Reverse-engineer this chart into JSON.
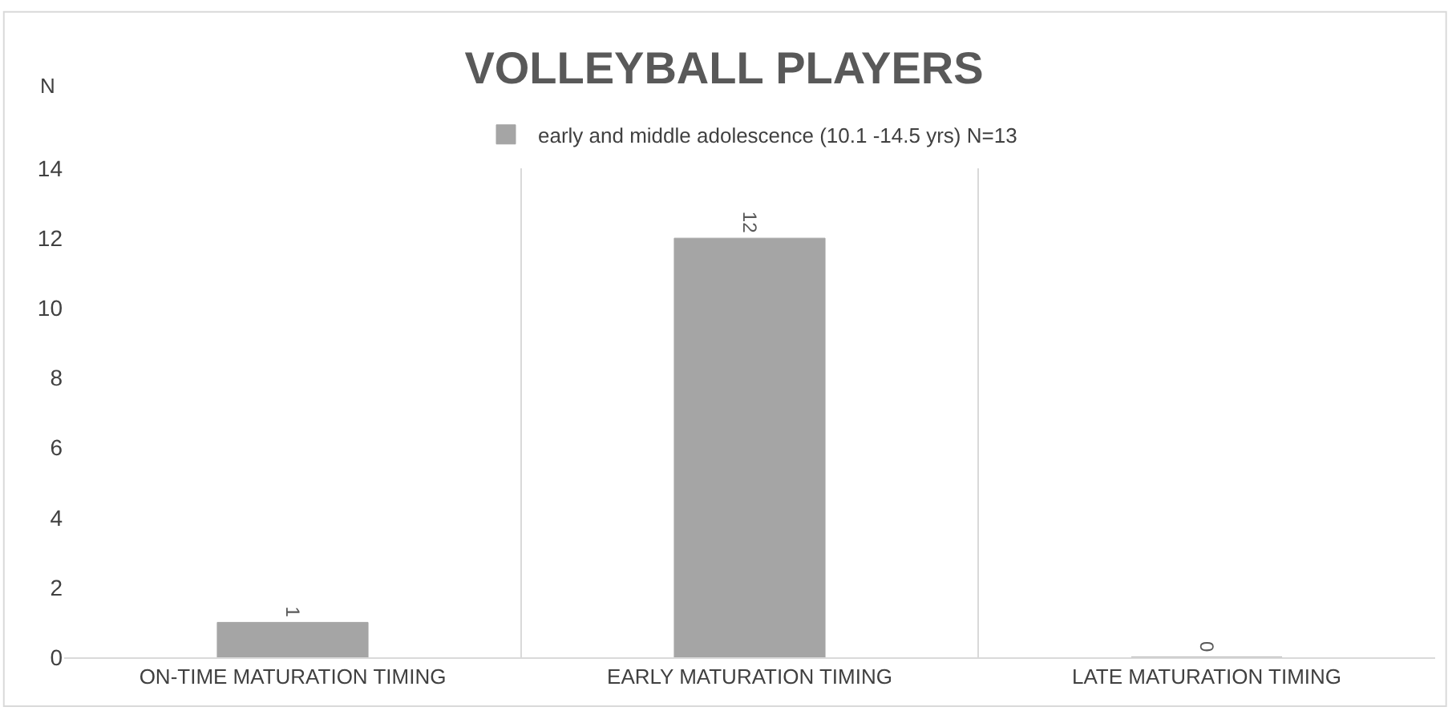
{
  "chart_data": {
    "type": "bar",
    "title": "VOLLEYBALL PLAYERS",
    "ylabel": "N",
    "categories": [
      "ON-TIME MATURATION TIMING",
      "EARLY MATURATION TIMING",
      "LATE MATURATION TIMING"
    ],
    "series": [
      {
        "name": "early and middle adolescence (10.1 -14.5 yrs) N=13",
        "color": "#a5a5a5",
        "values": [
          1,
          12,
          0
        ]
      }
    ],
    "ylim": [
      0,
      14
    ],
    "yticks": [
      0,
      2,
      4,
      6,
      8,
      10,
      12,
      14
    ],
    "grid": "x",
    "legend": "top",
    "data_labels": true
  }
}
